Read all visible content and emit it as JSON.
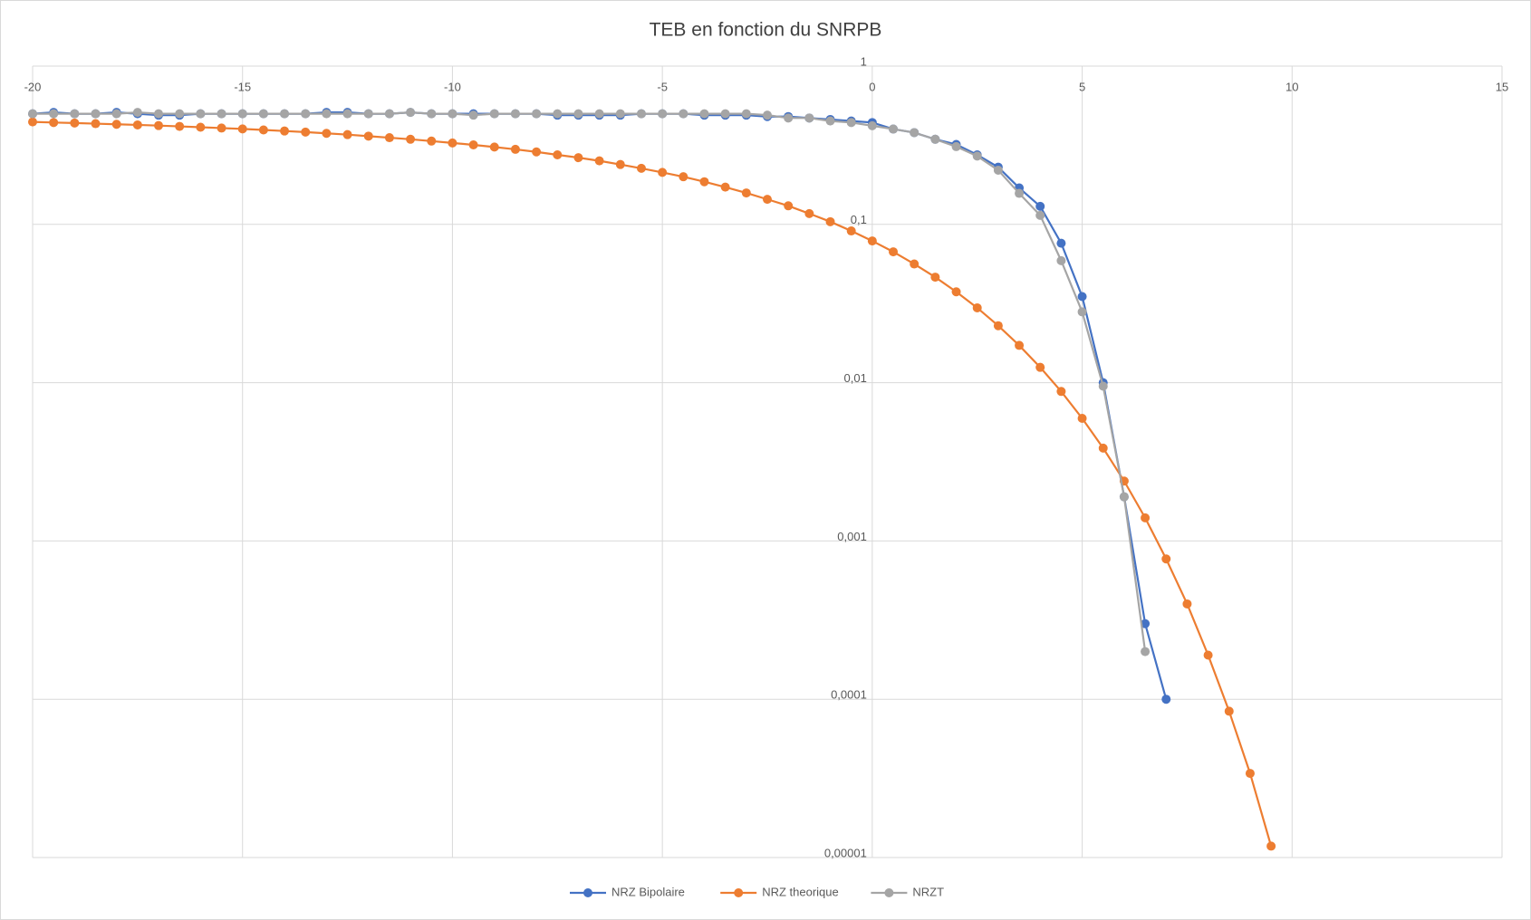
{
  "chart_data": {
    "type": "line",
    "title": "TEB en fonction du SNRPB",
    "x": [
      -20,
      -19.5,
      -19,
      -18.5,
      -18,
      -17.5,
      -17,
      -16.5,
      -16,
      -15.5,
      -15,
      -14.5,
      -14,
      -13.5,
      -13,
      -12.5,
      -12,
      -11.5,
      -11,
      -10.5,
      -10,
      -9.5,
      -9,
      -8.5,
      -8,
      -7.5,
      -7,
      -6.5,
      -6,
      -5.5,
      -5,
      -4.5,
      -4,
      -3.5,
      -3,
      -2.5,
      -2,
      -1.5,
      -1,
      -0.5,
      0,
      0.5,
      1,
      1.5,
      2,
      2.5,
      3,
      3.5,
      4,
      4.5,
      5,
      5.5,
      6,
      6.5,
      7,
      7.5,
      8,
      8.5,
      9,
      9.5
    ],
    "series": [
      {
        "name": "NRZ Bipolaire",
        "color": "#4472c4",
        "values": [
          0.5,
          0.51,
          0.5,
          0.5,
          0.51,
          0.5,
          0.49,
          0.49,
          0.5,
          0.5,
          0.5,
          0.5,
          0.5,
          0.5,
          0.51,
          0.51,
          0.5,
          0.5,
          0.51,
          0.5,
          0.5,
          0.5,
          0.5,
          0.5,
          0.5,
          0.49,
          0.49,
          0.49,
          0.49,
          0.5,
          0.5,
          0.5,
          0.49,
          0.49,
          0.49,
          0.48,
          0.48,
          0.47,
          0.46,
          0.45,
          0.44,
          0.4,
          0.38,
          0.345,
          0.32,
          0.275,
          0.23,
          0.17,
          0.13,
          0.076,
          0.035,
          0.01,
          0.0019,
          0.0003,
          0.0001,
          null,
          null,
          null,
          null,
          null
        ]
      },
      {
        "name": "NRZ theorique",
        "color": "#ed7d31",
        "values": [
          0.444,
          0.44,
          0.437,
          0.433,
          0.429,
          0.425,
          0.421,
          0.416,
          0.411,
          0.406,
          0.401,
          0.395,
          0.389,
          0.383,
          0.376,
          0.369,
          0.361,
          0.353,
          0.345,
          0.336,
          0.327,
          0.318,
          0.308,
          0.298,
          0.287,
          0.275,
          0.264,
          0.252,
          0.239,
          0.226,
          0.213,
          0.2,
          0.186,
          0.172,
          0.158,
          0.144,
          0.131,
          0.117,
          0.104,
          0.0909,
          0.0786,
          0.0671,
          0.0562,
          0.0464,
          0.0375,
          0.0297,
          0.0229,
          0.0172,
          0.0125,
          0.0088,
          0.00595,
          0.00386,
          0.00239,
          0.0014,
          0.00077,
          0.0004,
          0.00019,
          8.4e-05,
          3.4e-05,
          1.18e-05
        ]
      },
      {
        "name": "NRZT",
        "color": "#a5a5a5",
        "values": [
          0.5,
          0.5,
          0.5,
          0.5,
          0.5,
          0.51,
          0.5,
          0.5,
          0.5,
          0.5,
          0.5,
          0.5,
          0.5,
          0.5,
          0.5,
          0.5,
          0.5,
          0.5,
          0.51,
          0.5,
          0.5,
          0.49,
          0.5,
          0.5,
          0.5,
          0.5,
          0.5,
          0.5,
          0.5,
          0.5,
          0.5,
          0.5,
          0.5,
          0.5,
          0.5,
          0.49,
          0.47,
          0.47,
          0.45,
          0.44,
          0.42,
          0.4,
          0.38,
          0.345,
          0.31,
          0.27,
          0.22,
          0.157,
          0.114,
          0.059,
          0.028,
          0.0095,
          0.0019,
          0.0002,
          null,
          null,
          null,
          null,
          null,
          null
        ]
      }
    ],
    "xlim": [
      -20,
      15
    ],
    "xticks": [
      -20,
      -15,
      -10,
      -5,
      0,
      5,
      10,
      15
    ],
    "ylim": [
      1e-05,
      1
    ],
    "log_y": true,
    "yticks": [
      1,
      {
        "value": 0.1,
        "label": "0,1"
      },
      {
        "value": 0.01,
        "label": "0,01"
      },
      {
        "value": 0.001,
        "label": "0,001"
      },
      {
        "value": 0.0001,
        "label": "0,0001"
      },
      {
        "value": 1e-05,
        "label": "0,00001"
      }
    ],
    "grid": true,
    "legend": "bottom"
  }
}
